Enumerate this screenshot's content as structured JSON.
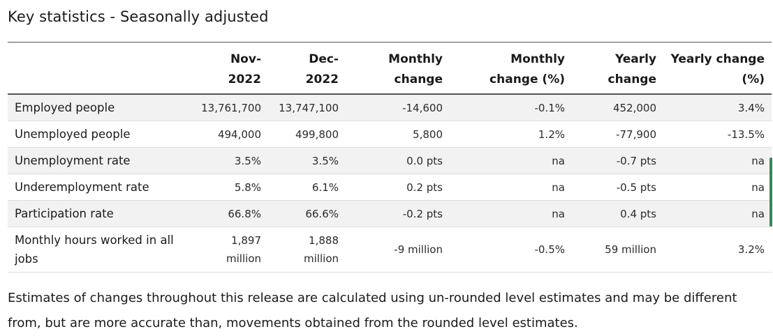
{
  "title": "Key statistics - Seasonally adjusted",
  "table": {
    "headers": [
      "",
      "Nov-\n2022",
      "Dec-\n2022",
      "Monthly\nchange",
      "Monthly\nchange (%)",
      "Yearly\nchange",
      "Yearly change\n(%)"
    ],
    "rows": [
      [
        "Employed people",
        "13,761,700",
        "13,747,100",
        "-14,600",
        "-0.1%",
        "452,000",
        "3.4%"
      ],
      [
        "Unemployed people",
        "494,000",
        "499,800",
        "5,800",
        "1.2%",
        "-77,900",
        "-13.5%"
      ],
      [
        "Unemployment rate",
        "3.5%",
        "3.5%",
        "0.0 pts",
        "na",
        "-0.7 pts",
        "na"
      ],
      [
        "Underemployment rate",
        "5.8%",
        "6.1%",
        "0.2 pts",
        "na",
        "-0.5 pts",
        "na"
      ],
      [
        "Participation rate",
        "66.8%",
        "66.6%",
        "-0.2 pts",
        "na",
        "0.4 pts",
        "na"
      ],
      [
        "Monthly hours worked in all jobs",
        "1,897 million",
        "1,888 million",
        "-9 million",
        "-0.5%",
        "59 million",
        "3.2%"
      ]
    ]
  },
  "note": "Estimates of changes throughout this release are calculated using un-rounded level estimates and may be different from, but are more accurate than, movements obtained from the rounded level estimates.",
  "colors": {
    "scroll_indicator": "#2e8b57",
    "row_shade": "#f2f2f2"
  }
}
